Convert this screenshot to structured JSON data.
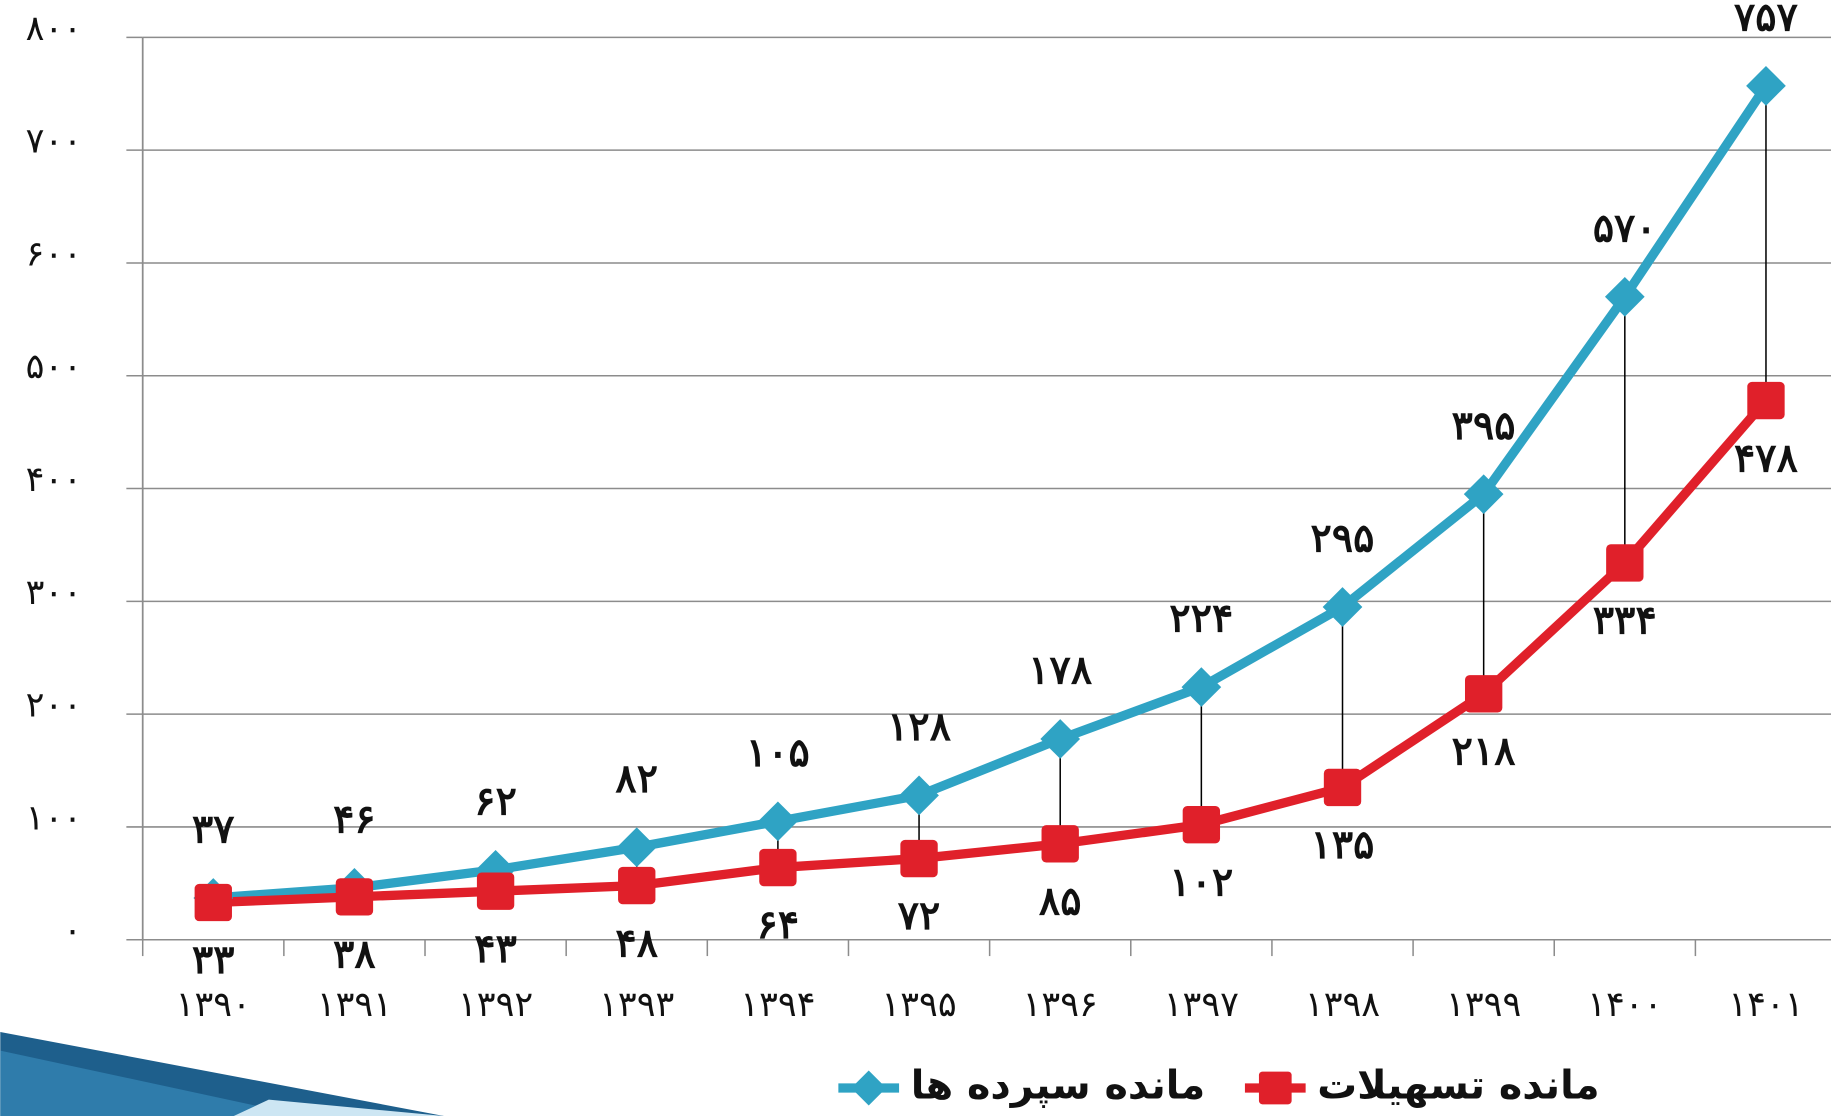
{
  "chart_data": {
    "type": "line",
    "categories": [
      "۱۳۹۰",
      "۱۳۹۱",
      "۱۳۹۲",
      "۱۳۹۳",
      "۱۳۹۴",
      "۱۳۹۵",
      "۱۳۹۶",
      "۱۳۹۷",
      "۱۳۹۸",
      "۱۳۹۹",
      "۱۴۰۰",
      "۱۴۰۱"
    ],
    "series": [
      {
        "name": "مانده سپرده ها",
        "color": "#2fa3c4",
        "marker": "diamond",
        "label_position": "above",
        "values": [
          37,
          46,
          62,
          82,
          105,
          128,
          178,
          224,
          295,
          395,
          570,
          757
        ],
        "value_labels": [
          "۳۷",
          "۴۶",
          "۶۲",
          "۸۲",
          "۱۰۵",
          "۱۲۸",
          "۱۷۸",
          "۲۲۴",
          "۲۹۵",
          "۳۹۵",
          "۵۷۰",
          "۷۵۷"
        ]
      },
      {
        "name": "مانده تسهیلات",
        "color": "#e0202a",
        "marker": "square",
        "label_position": "below",
        "values": [
          33,
          38,
          43,
          48,
          64,
          72,
          85,
          102,
          135,
          218,
          334,
          478
        ],
        "value_labels": [
          "۳۳",
          "۳۸",
          "۴۳",
          "۴۸",
          "۶۴",
          "۷۲",
          "۸۵",
          "۱۰۲",
          "۱۳۵",
          "۲۱۸",
          "۳۳۴",
          "۴۷۸"
        ]
      }
    ],
    "ylim": [
      0,
      800
    ],
    "yticks": [
      {
        "value": 0,
        "label": "۰"
      },
      {
        "value": 100,
        "label": "۱۰۰"
      },
      {
        "value": 200,
        "label": "۲۰۰"
      },
      {
        "value": 300,
        "label": "۳۰۰"
      },
      {
        "value": 400,
        "label": "۴۰۰"
      },
      {
        "value": 500,
        "label": "۵۰۰"
      },
      {
        "value": 600,
        "label": "۶۰۰"
      },
      {
        "value": 700,
        "label": "۷۰۰"
      },
      {
        "value": 800,
        "label": "۸۰۰"
      }
    ],
    "grid": true,
    "high_low_lines": true,
    "legend": "bottom"
  }
}
